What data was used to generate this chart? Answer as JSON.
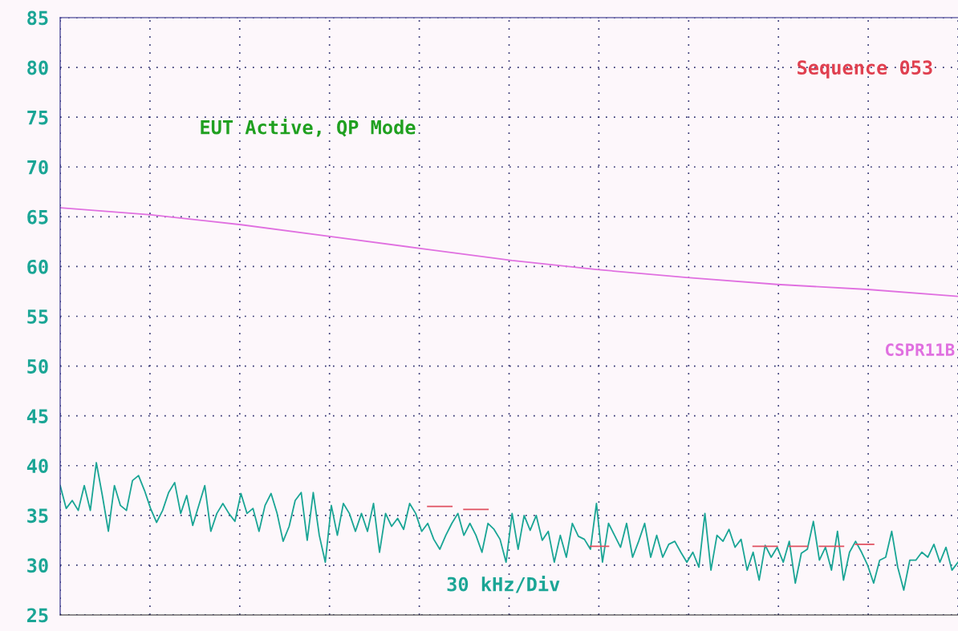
{
  "chart_data": {
    "type": "line",
    "categories": [
      null,
      null,
      null,
      null,
      null,
      null,
      null,
      null,
      null,
      null,
      null,
      null,
      null,
      null,
      null,
      null,
      null,
      null,
      null,
      null,
      null,
      null,
      null,
      null,
      null,
      null,
      null,
      null,
      null,
      null,
      null,
      null,
      null,
      null,
      null,
      null,
      null,
      null,
      null,
      null,
      null,
      null,
      null,
      null,
      null,
      null,
      null,
      null,
      null,
      null,
      null,
      null,
      null,
      null,
      null,
      null,
      null,
      null,
      null,
      null,
      null,
      null,
      null,
      null,
      null,
      null,
      null,
      null,
      null,
      null,
      null,
      null,
      null,
      null,
      null,
      null,
      null,
      null,
      null,
      null,
      null,
      null,
      null,
      null,
      null,
      null,
      null,
      null,
      null,
      null,
      null,
      null,
      null,
      null,
      null,
      null,
      null,
      null,
      null,
      null,
      null,
      null,
      null,
      null,
      null,
      null,
      null,
      null,
      null,
      null,
      null,
      null,
      null,
      null,
      null,
      null,
      null,
      null,
      null,
      null,
      null,
      null,
      null,
      null,
      null,
      null,
      null,
      null,
      null,
      null,
      null,
      null,
      null,
      null,
      null,
      null,
      null,
      null,
      null,
      null,
      null,
      null,
      null,
      null,
      null,
      null,
      null,
      null,
      null,
      null
    ],
    "series": [
      {
        "color": "#1aa595",
        "values": [
          38,
          35.7,
          36.5,
          35.5,
          38,
          35.5,
          40.3,
          37,
          33.4,
          38,
          36,
          35.5,
          38.5,
          39,
          37.5,
          35.7,
          34.3,
          35.5,
          37.3,
          38.3,
          35.2,
          37,
          34,
          36,
          38,
          33.4,
          35.2,
          36.2,
          35.2,
          34.4,
          37.2,
          35.2,
          35.7,
          33.4,
          36,
          37.2,
          35.2,
          32.4,
          33.9,
          36.5,
          37.3,
          32.5,
          37.3,
          33,
          30.3,
          36,
          33,
          36.2,
          35.2,
          33.4,
          35.2,
          33.4,
          36.2,
          31.3,
          35.2,
          33.9,
          34.7,
          33.6,
          36.2,
          35.2,
          33.4,
          34.2,
          32.6,
          31.6,
          33,
          34.2,
          35.2,
          33,
          34.2,
          33,
          31.3,
          34.2,
          33.6,
          32.6,
          30.3,
          35.2,
          31.6,
          35,
          33.5,
          35,
          32.5,
          33.4,
          30.3,
          33,
          30.8,
          34.2,
          32.9,
          32.6,
          31.6,
          36.2,
          30.3,
          34.2,
          33,
          31.8,
          34.2,
          30.8,
          32.4,
          34.2,
          30.8,
          33,
          30.8,
          32.1,
          32.4,
          31.3,
          30.3,
          31.3,
          29.8,
          35.2,
          29.5,
          33,
          32.4,
          33.6,
          31.8,
          32.6,
          29.5,
          31.3,
          28.5,
          32,
          30.8,
          31.8,
          30.3,
          32.4,
          28.2,
          31.2,
          31.6,
          34.4,
          30.5,
          31.8,
          29.5,
          33.4,
          28.5,
          31.3,
          32.4,
          31.3,
          30,
          28.2,
          30.5,
          30.8,
          33.4,
          29.8,
          27.5,
          30.5,
          30.5,
          31.3,
          30.8,
          32.1,
          30.3,
          31.8,
          29.5,
          30.3
        ]
      },
      {
        "name": "CSPR11B",
        "color": "#e070e0",
        "values": [
          65.9,
          null,
          null,
          null,
          null,
          null,
          null,
          null,
          null,
          null,
          null,
          null,
          null,
          null,
          null,
          65.2,
          null,
          null,
          null,
          null,
          null,
          null,
          null,
          null,
          null,
          null,
          null,
          null,
          null,
          null,
          64.2,
          null,
          null,
          null,
          null,
          null,
          null,
          null,
          null,
          null,
          null,
          null,
          null,
          null,
          null,
          63.0,
          null,
          null,
          null,
          null,
          null,
          null,
          null,
          null,
          null,
          null,
          null,
          null,
          null,
          null,
          61.8,
          null,
          null,
          null,
          null,
          null,
          null,
          null,
          null,
          null,
          null,
          null,
          null,
          null,
          null,
          60.6,
          null,
          null,
          null,
          null,
          null,
          null,
          null,
          null,
          null,
          null,
          null,
          null,
          null,
          59.7,
          null,
          null,
          null,
          null,
          null,
          null,
          null,
          null,
          null,
          null,
          null,
          null,
          null,
          null,
          58.9,
          null,
          null,
          null,
          null,
          null,
          null,
          null,
          null,
          null,
          null,
          null,
          null,
          null,
          null,
          58.2,
          null,
          null,
          null,
          null,
          null,
          null,
          null,
          null,
          null,
          null,
          null,
          null,
          null,
          null,
          57.7,
          null,
          null,
          null,
          null,
          null,
          null,
          null,
          null,
          null,
          null,
          null,
          null,
          null,
          null,
          57.0
        ]
      },
      {
        "color": "#e05060",
        "values": [
          null,
          null,
          null,
          null,
          null,
          null,
          null,
          null,
          null,
          null,
          null,
          null,
          null,
          null,
          null,
          null,
          null,
          null,
          null,
          null,
          null,
          null,
          null,
          null,
          null,
          null,
          null,
          null,
          null,
          null,
          null,
          null,
          null,
          null,
          null,
          null,
          null,
          null,
          null,
          null,
          null,
          null,
          null,
          null,
          null,
          null,
          null,
          null,
          null,
          null,
          null,
          null,
          null,
          null,
          null,
          null,
          null,
          null,
          null,
          null,
          null,
          35.9,
          35.9,
          35.9,
          35.9,
          35.9,
          null,
          35.6,
          35.6,
          35.6,
          35.6,
          35.6,
          null,
          null,
          null,
          null,
          null,
          null,
          null,
          null,
          null,
          null,
          null,
          null,
          null,
          null,
          null,
          null,
          31.9,
          31.9,
          31.9,
          31.9,
          null,
          null,
          null,
          null,
          null,
          null,
          null,
          null,
          null,
          null,
          null,
          null,
          null,
          null,
          null,
          null,
          null,
          null,
          null,
          null,
          null,
          null,
          null,
          31.9,
          31.9,
          31.9,
          31.9,
          31.9,
          null,
          31.9,
          31.9,
          31.9,
          31.9,
          null,
          31.9,
          31.9,
          31.9,
          31.9,
          31.9,
          null,
          32.1,
          32.1,
          32.1,
          32.1,
          null,
          null,
          null,
          null,
          null,
          null,
          null,
          null,
          null,
          null,
          null,
          null,
          null,
          null
        ]
      }
    ],
    "ylim": [
      25,
      85
    ],
    "yticks": [
      25,
      30,
      35,
      40,
      45,
      50,
      55,
      60,
      65,
      70,
      75,
      80,
      85
    ],
    "grid": true,
    "legend": false,
    "tick_labels": "y",
    "annotations": [
      "EUT Active, QP Mode",
      "30 kHz/Div",
      "Sequence 053"
    ]
  }
}
